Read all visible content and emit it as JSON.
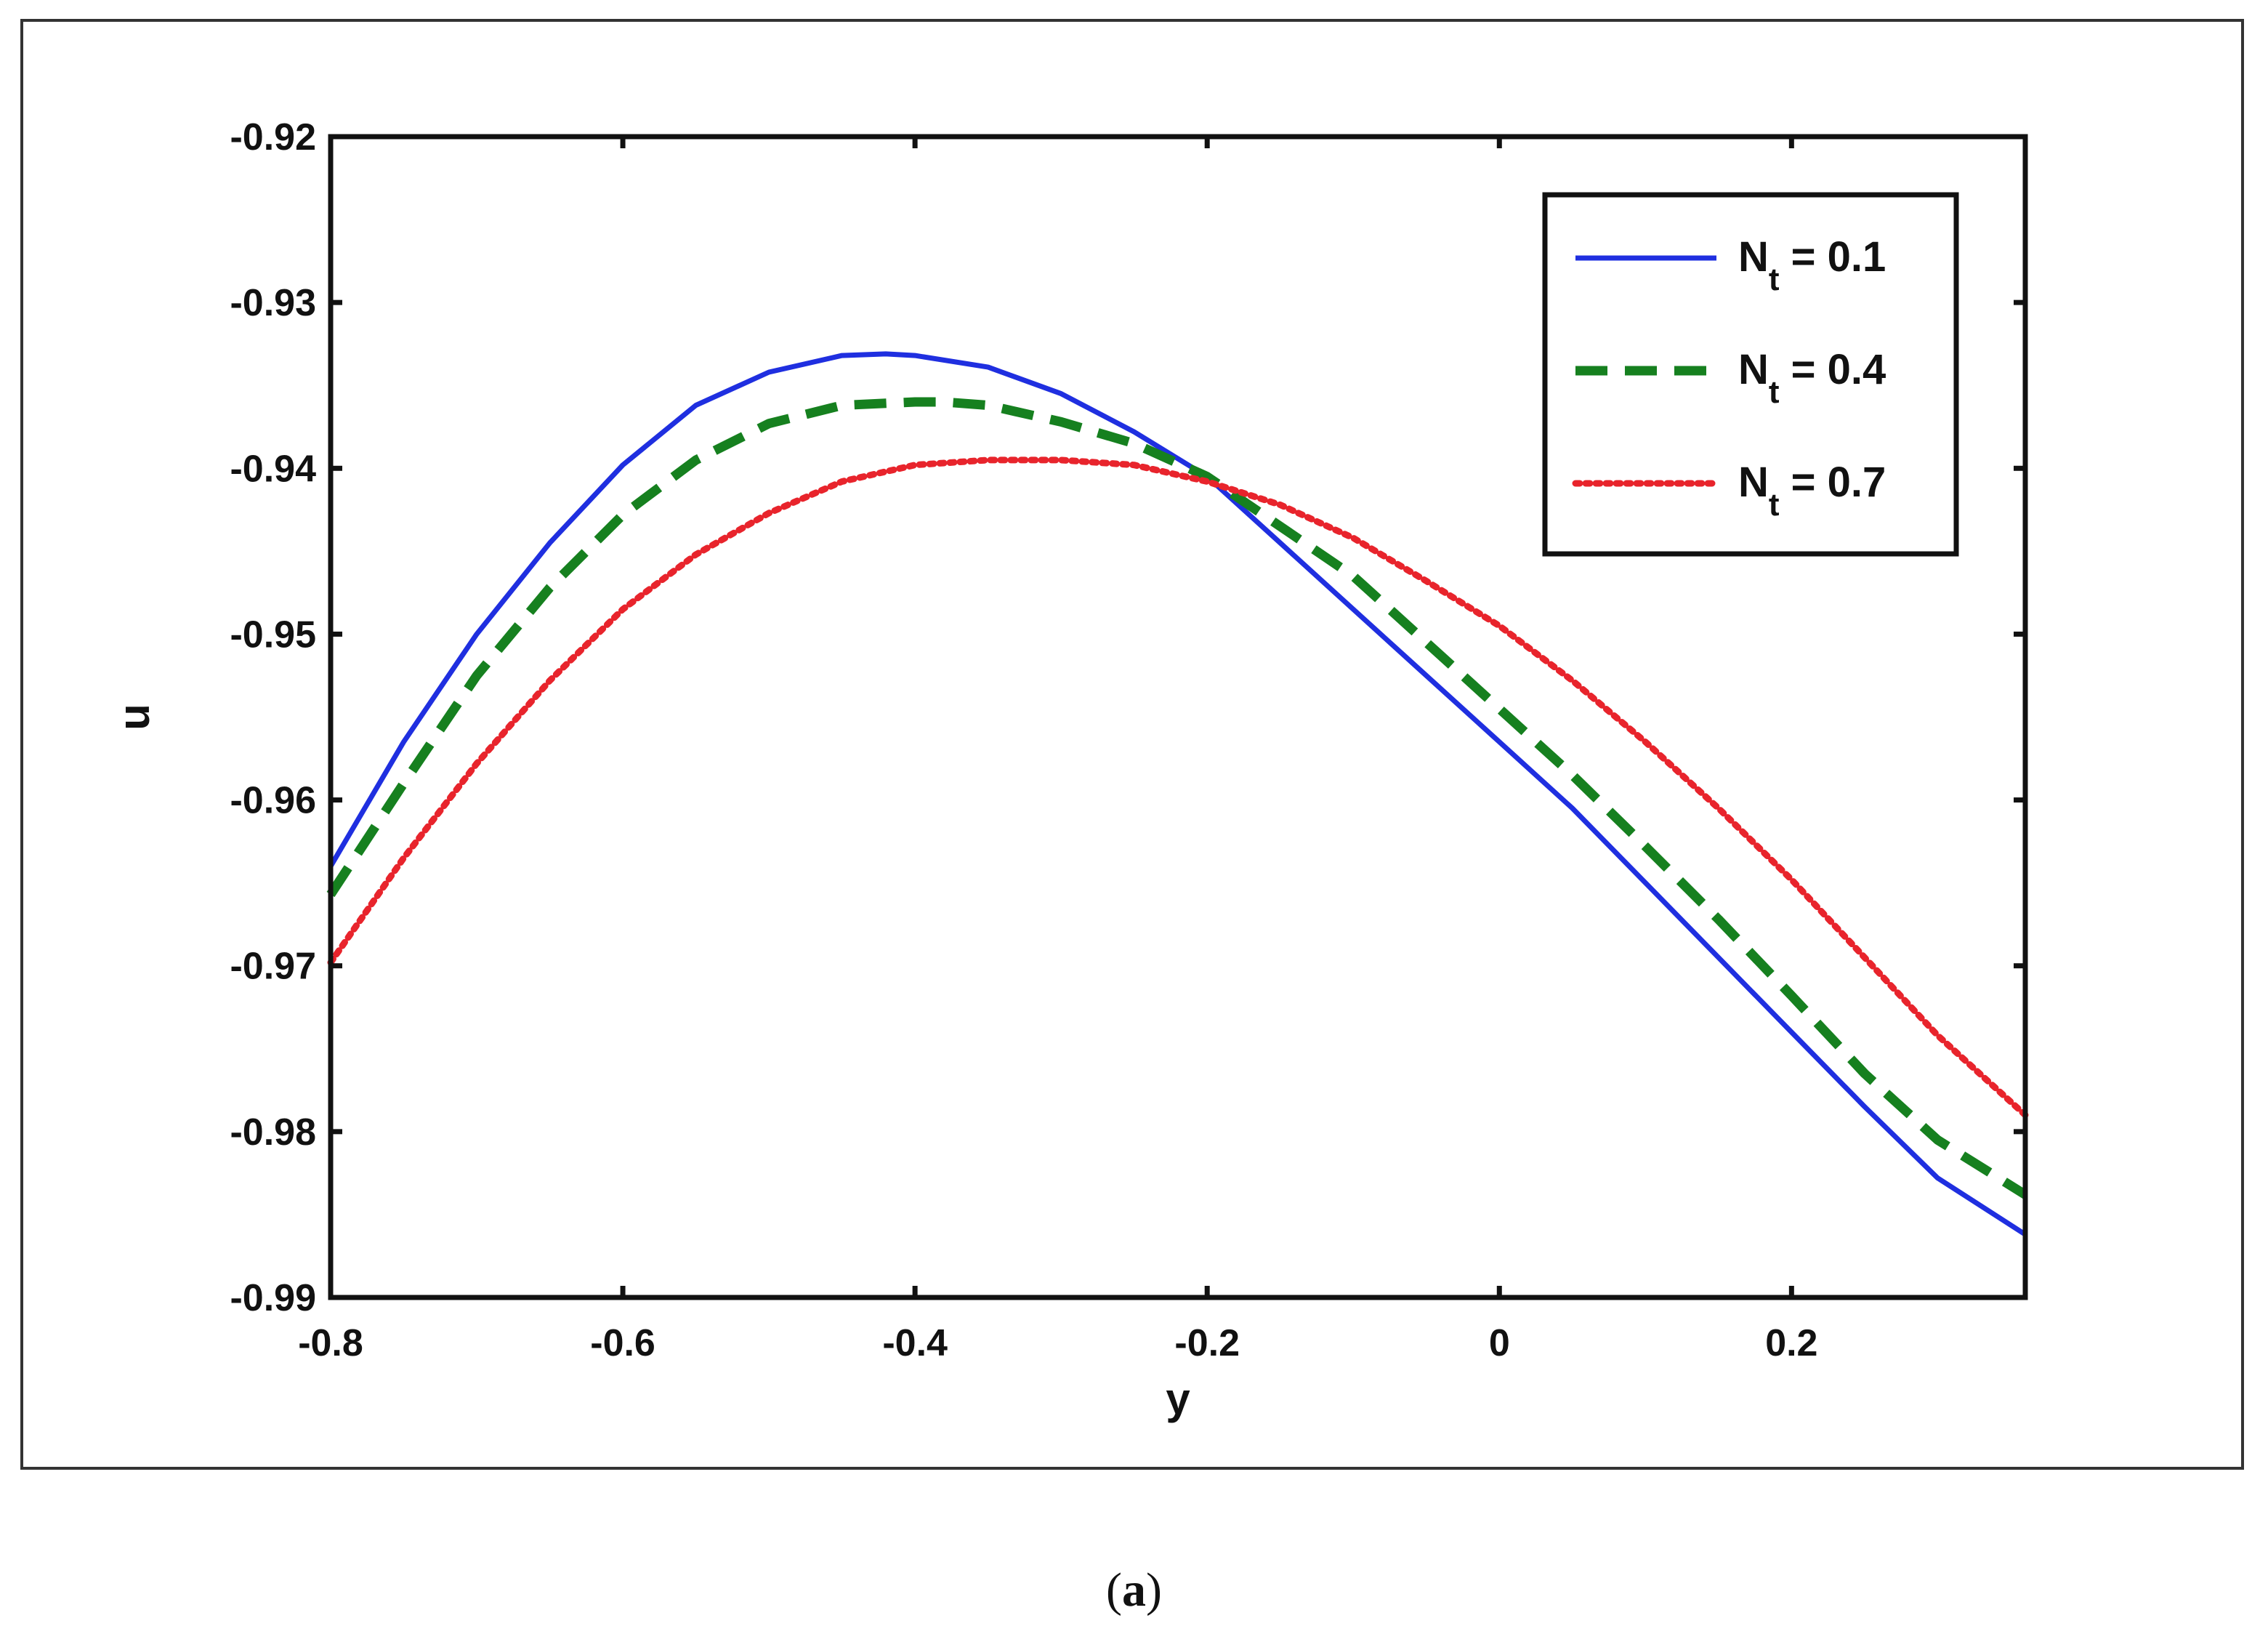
{
  "chart_data": {
    "type": "line",
    "title": "",
    "xlabel": "y",
    "ylabel": "u",
    "xlim": [
      -0.8,
      0.36
    ],
    "ylim": [
      -0.99,
      -0.92
    ],
    "x_ticks": [
      -0.8,
      -0.6,
      -0.4,
      -0.2,
      0,
      0.2
    ],
    "x_tick_labels": [
      "-0.8",
      "-0.6",
      "-0.4",
      "-0.2",
      "0",
      "0.2"
    ],
    "y_ticks": [
      -0.92,
      -0.93,
      -0.94,
      -0.95,
      -0.96,
      -0.97,
      -0.98,
      -0.99
    ],
    "y_tick_labels": [
      "-0.92",
      "-0.93",
      "-0.94",
      "-0.95",
      "-0.96",
      "-0.97",
      "-0.98",
      "-0.99"
    ],
    "grid": false,
    "legend_position": "top-right",
    "series": [
      {
        "name_main": "N",
        "name_sub": "t",
        "name_value": " = 0.1",
        "color": "#1f2fe0",
        "style": "solid",
        "x": [
          -0.8,
          -0.75,
          -0.7,
          -0.65,
          -0.6,
          -0.55,
          -0.5,
          -0.45,
          -0.42,
          -0.4,
          -0.35,
          -0.3,
          -0.25,
          -0.2,
          -0.15,
          -0.1,
          -0.05,
          0,
          0.05,
          0.1,
          0.15,
          0.2,
          0.25,
          0.3,
          0.36
        ],
        "y": [
          -0.964,
          -0.9565,
          -0.95,
          -0.9445,
          -0.9398,
          -0.9362,
          -0.9342,
          -0.9332,
          -0.9331,
          -0.9332,
          -0.9339,
          -0.9355,
          -0.9378,
          -0.9405,
          -0.9445,
          -0.9485,
          -0.9525,
          -0.9565,
          -0.9605,
          -0.965,
          -0.9695,
          -0.974,
          -0.9785,
          -0.9828,
          -0.9862
        ]
      },
      {
        "name_main": "N",
        "name_sub": "t",
        "name_value": " = 0.4",
        "color": "#16801f",
        "style": "dashed",
        "x": [
          -0.8,
          -0.75,
          -0.7,
          -0.65,
          -0.6,
          -0.55,
          -0.5,
          -0.45,
          -0.4,
          -0.38,
          -0.35,
          -0.3,
          -0.25,
          -0.2,
          -0.15,
          -0.1,
          -0.05,
          0,
          0.05,
          0.1,
          0.15,
          0.2,
          0.25,
          0.3,
          0.36
        ],
        "y": [
          -0.9657,
          -0.959,
          -0.9525,
          -0.9472,
          -0.9428,
          -0.9395,
          -0.9373,
          -0.9362,
          -0.936,
          -0.936,
          -0.9362,
          -0.9372,
          -0.9385,
          -0.9405,
          -0.9435,
          -0.9465,
          -0.9505,
          -0.9545,
          -0.9585,
          -0.9628,
          -0.9672,
          -0.9718,
          -0.9765,
          -0.9805,
          -0.9838
        ]
      },
      {
        "name_main": "N",
        "name_sub": "t",
        "name_value": " = 0.7",
        "color": "#e8242c",
        "style": "dotted",
        "x": [
          -0.8,
          -0.75,
          -0.7,
          -0.65,
          -0.6,
          -0.55,
          -0.5,
          -0.45,
          -0.4,
          -0.35,
          -0.3,
          -0.25,
          -0.2,
          -0.15,
          -0.1,
          -0.05,
          0,
          0.05,
          0.1,
          0.15,
          0.2,
          0.25,
          0.3,
          0.36
        ],
        "y": [
          -0.9698,
          -0.9635,
          -0.9578,
          -0.9528,
          -0.9485,
          -0.9452,
          -0.9427,
          -0.9408,
          -0.9398,
          -0.9395,
          -0.9395,
          -0.9398,
          -0.9408,
          -0.9422,
          -0.9442,
          -0.9468,
          -0.9495,
          -0.9528,
          -0.9565,
          -0.9605,
          -0.9648,
          -0.9695,
          -0.9742,
          -0.979
        ]
      }
    ]
  },
  "caption": {
    "open": "(",
    "letter": "a",
    "close": ")"
  }
}
